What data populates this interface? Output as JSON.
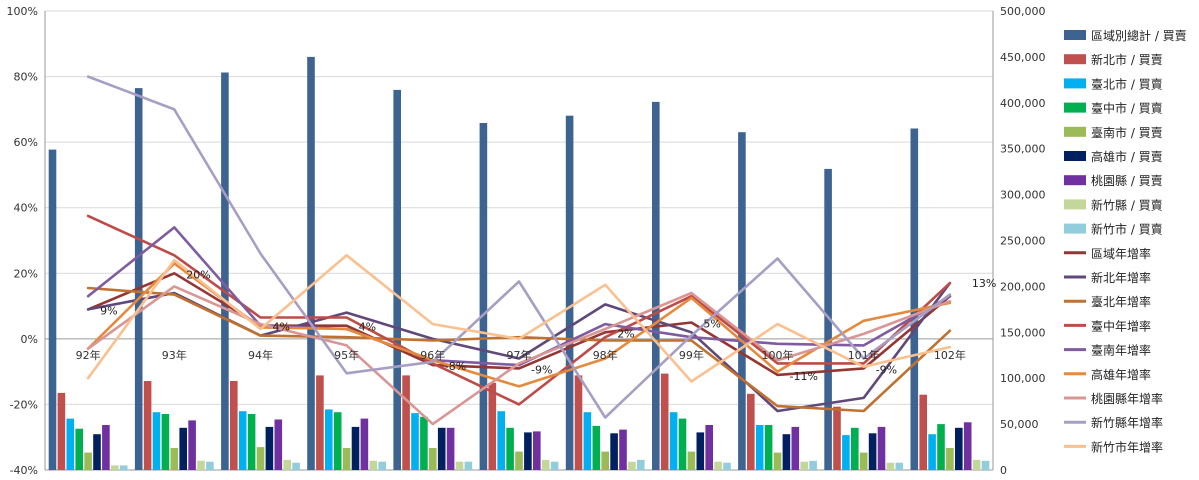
{
  "chart_data": {
    "type": "bar",
    "categories": [
      "92年",
      "93年",
      "94年",
      "95年",
      "96年",
      "97年",
      "98年",
      "99年",
      "100年",
      "101年",
      "102年"
    ],
    "y_left": {
      "ylim": [
        -40,
        100
      ],
      "ticks": [
        "-40%",
        "-20%",
        "0%",
        "20%",
        "40%",
        "60%",
        "80%",
        "100%"
      ]
    },
    "y_right": {
      "ylim": [
        0,
        500000
      ],
      "ticks": [
        "0",
        "50,000",
        "100,000",
        "150,000",
        "200,000",
        "250,000",
        "300,000",
        "350,000",
        "400,000",
        "450,000",
        "500,000"
      ]
    },
    "legend_position": "right",
    "grid": true,
    "bar_series": [
      {
        "name": "區域別總計 / 買賣",
        "color": "#3D6391",
        "values": [
          349000,
          416000,
          433000,
          450000,
          414000,
          378000,
          386000,
          401000,
          368000,
          328000,
          372000
        ]
      },
      {
        "name": "新北市 / 買賣",
        "color": "#C0504D",
        "values": [
          84000,
          97000,
          97000,
          103000,
          103000,
          95000,
          103000,
          105000,
          83000,
          69000,
          82000
        ]
      },
      {
        "name": "臺北市 / 買賣",
        "color": "#00B0F0",
        "values": [
          56000,
          63000,
          64000,
          66000,
          62000,
          64000,
          63000,
          63000,
          49000,
          38000,
          39000
        ]
      },
      {
        "name": "臺中市 / 買賣",
        "color": "#00B050",
        "values": [
          45000,
          61000,
          61000,
          63000,
          58000,
          46000,
          48000,
          56000,
          49000,
          46000,
          50000
        ]
      },
      {
        "name": "臺南市 / 買賣",
        "color": "#9BBB59",
        "values": [
          19000,
          24000,
          25000,
          24000,
          24000,
          20000,
          20000,
          20000,
          19000,
          19000,
          24000
        ]
      },
      {
        "name": "高雄市 / 買賣",
        "color": "#002060",
        "values": [
          39000,
          46000,
          47000,
          47000,
          46000,
          41000,
          40000,
          41000,
          39000,
          40000,
          46000
        ]
      },
      {
        "name": "桃園縣 / 買賣",
        "color": "#7030A0",
        "values": [
          49000,
          54000,
          55000,
          56000,
          46000,
          42000,
          44000,
          49000,
          47000,
          47000,
          52000
        ]
      },
      {
        "name": "新竹縣 / 買賣",
        "color": "#C4D79B",
        "values": [
          5000,
          10000,
          11000,
          10000,
          9000,
          11000,
          9000,
          9000,
          9000,
          8000,
          11000
        ]
      },
      {
        "name": "新竹市 / 買賣",
        "color": "#92CDDC",
        "values": [
          5000,
          9000,
          8000,
          9000,
          9000,
          9000,
          11000,
          8000,
          10000,
          8000,
          10000
        ]
      }
    ],
    "line_series": [
      {
        "name": "區域年增率",
        "color": "#943634",
        "values": [
          9.0,
          20.0,
          4.0,
          4.0,
          -8.0,
          -9.0,
          2.0,
          5.0,
          -11.0,
          -9.0,
          13.0
        ]
      },
      {
        "name": "新北年增率",
        "color": "#60497A",
        "values": [
          9.0,
          14.0,
          1.0,
          8.0,
          0.0,
          -6.0,
          10.5,
          2.0,
          -22.0,
          -18.0,
          17.0
        ]
      },
      {
        "name": "臺北年增率",
        "color": "#C0712F",
        "values": [
          15.5,
          13.5,
          1.0,
          0.5,
          -0.5,
          0.5,
          -0.5,
          -0.5,
          -20.5,
          -22.0,
          2.5
        ]
      },
      {
        "name": "臺中年增率",
        "color": "#BE4B48",
        "values": [
          37.5,
          25.5,
          6.5,
          6.5,
          -7.5,
          -20.0,
          0.5,
          13.0,
          -7.5,
          -7.5,
          17.0
        ]
      },
      {
        "name": "臺南年增率",
        "color": "#7F5CA0",
        "values": [
          13.0,
          34.0,
          4.0,
          3.0,
          -6.5,
          -8.0,
          4.5,
          0.5,
          -1.5,
          -2.0,
          13.0
        ]
      },
      {
        "name": "高雄年增率",
        "color": "#E58A3C",
        "values": [
          -3.0,
          23.0,
          3.5,
          3.0,
          -6.5,
          -14.5,
          -6.0,
          12.5,
          -10.0,
          5.5,
          11.0
        ]
      },
      {
        "name": "桃園縣年增率",
        "color": "#D99694",
        "values": [
          -3.0,
          16.0,
          4.5,
          -2.0,
          -26.0,
          -7.5,
          3.0,
          14.0,
          -6.5,
          1.5,
          11.5
        ]
      },
      {
        "name": "新竹縣年增率",
        "color": "#A79FC3",
        "values": [
          80.0,
          70.0,
          26.0,
          -10.5,
          -7.0,
          17.5,
          -24.0,
          1.0,
          24.5,
          -6.0,
          13.5
        ]
      },
      {
        "name": "新竹市年增率",
        "color": "#FAC090",
        "values": [
          -12.0,
          24.0,
          3.0,
          25.5,
          4.5,
          0.0,
          16.5,
          -13.0,
          4.5,
          -8.5,
          -2.5
        ]
      }
    ],
    "data_labels": [
      {
        "index": 0,
        "text": "9%",
        "value": 9.0
      },
      {
        "index": 1,
        "text": "20%",
        "value": 20.0
      },
      {
        "index": 2,
        "text": "4%",
        "value": 4.0
      },
      {
        "index": 3,
        "text": "4%",
        "value": 4.0
      },
      {
        "index": 4,
        "text": "-8%",
        "value": -8.0
      },
      {
        "index": 5,
        "text": "-9%",
        "value": -9.0
      },
      {
        "index": 6,
        "text": "2%",
        "value": 2.0
      },
      {
        "index": 7,
        "text": "5%",
        "value": 5.0
      },
      {
        "index": 8,
        "text": "-11%",
        "value": -11.0
      },
      {
        "index": 9,
        "text": "-9%",
        "value": -9.0
      },
      {
        "index": 10,
        "text": "13%",
        "value": 13.0
      }
    ]
  }
}
